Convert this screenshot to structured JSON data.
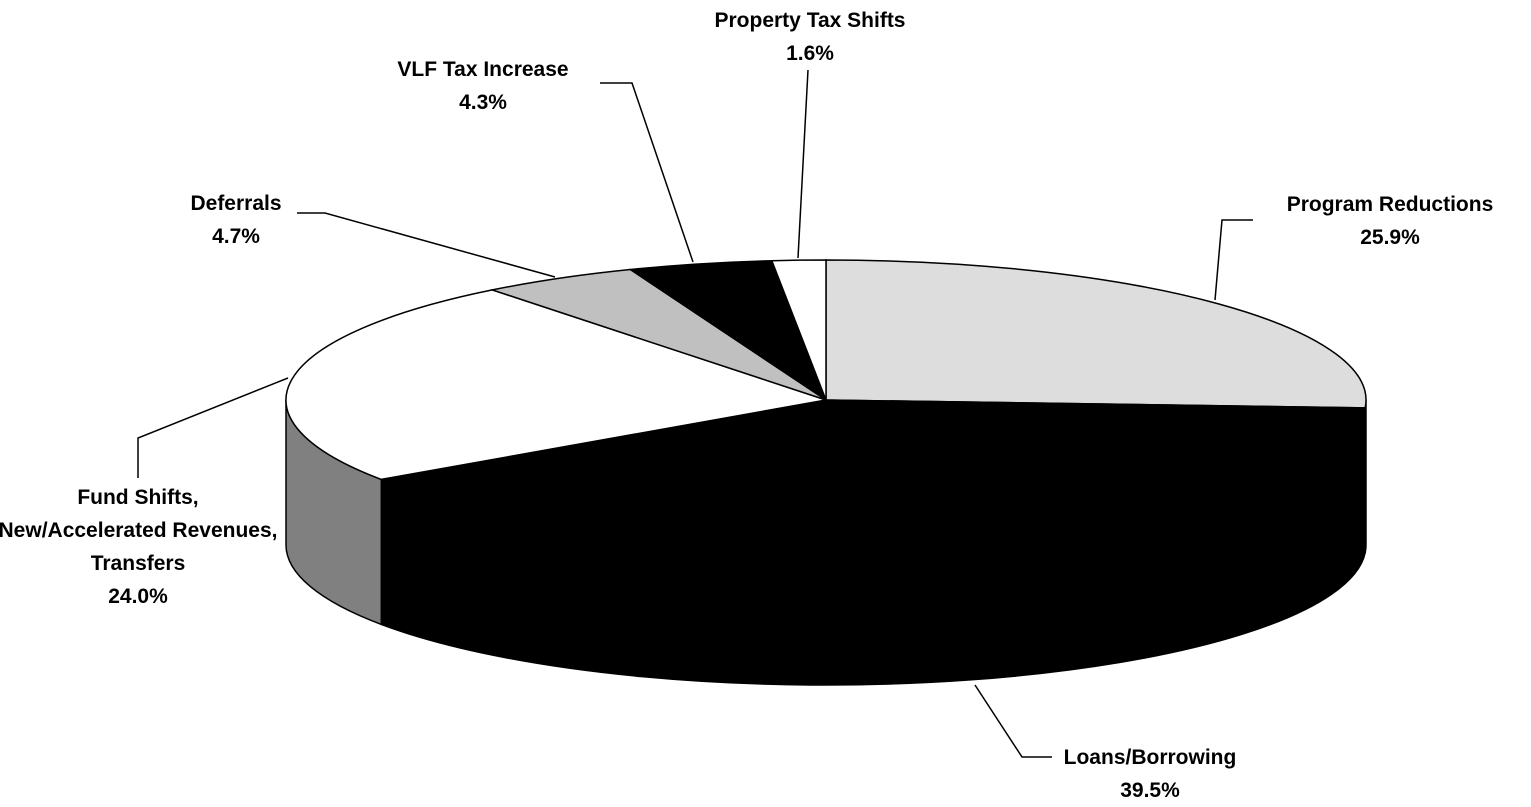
{
  "chart_data": {
    "type": "pie",
    "three_d": true,
    "categories": [
      "Program Reductions",
      "Loans/Borrowing",
      "Fund Shifts, New/Accelerated Revenues, Transfers",
      "Deferrals",
      "VLF Tax Increase",
      "Property Tax Shifts"
    ],
    "values": [
      25.9,
      39.5,
      24.0,
      4.7,
      4.3,
      1.6
    ],
    "value_labels": [
      "25.9%",
      "39.5%",
      "24.0%",
      "4.7%",
      "4.3%",
      "1.6%"
    ],
    "colors": [
      "#dddddd",
      "#000000",
      "#ffffff",
      "#c0c0c0",
      "#000000",
      "#ffffff"
    ]
  }
}
